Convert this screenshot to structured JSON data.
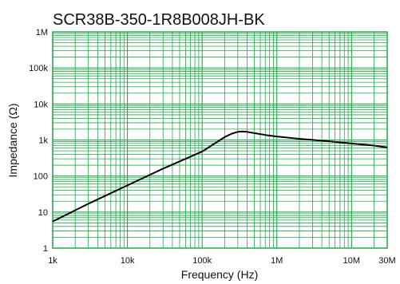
{
  "chart_data": {
    "type": "line",
    "title": "SCR38B-350-1R8B008JH-BK",
    "xlabel": "Frequency (Hz)",
    "ylabel": "Impedance (Ω)",
    "x_scale": "log",
    "y_scale": "log",
    "xlim": [
      1000,
      30000000
    ],
    "ylim": [
      1,
      1000000
    ],
    "grid": true,
    "x_ticks": [
      {
        "value": 1000,
        "label": "1k"
      },
      {
        "value": 10000,
        "label": "10k"
      },
      {
        "value": 100000,
        "label": "100k"
      },
      {
        "value": 1000000,
        "label": "1M"
      },
      {
        "value": 10000000,
        "label": "10M"
      },
      {
        "value": 30000000,
        "label": "30M"
      }
    ],
    "y_ticks": [
      {
        "value": 1,
        "label": "1"
      },
      {
        "value": 10,
        "label": "10"
      },
      {
        "value": 100,
        "label": "100"
      },
      {
        "value": 1000,
        "label": "1k"
      },
      {
        "value": 10000,
        "label": "10k"
      },
      {
        "value": 100000,
        "label": "100k"
      },
      {
        "value": 1000000,
        "label": "1M"
      }
    ],
    "series": [
      {
        "x": [
          1000,
          3000,
          10000,
          30000,
          100000,
          150000,
          200000,
          250000,
          300000,
          350000,
          400000,
          500000,
          700000,
          1000000,
          2000000,
          5000000,
          10000000,
          20000000,
          30000000
        ],
        "y": [
          5.5,
          17,
          55,
          160,
          480,
          820,
          1200,
          1500,
          1680,
          1720,
          1680,
          1550,
          1380,
          1250,
          1080,
          920,
          800,
          700,
          620
        ]
      }
    ],
    "colors": {
      "grid": "#22a84a",
      "line": "#000000",
      "frame": "#22a84a"
    }
  }
}
